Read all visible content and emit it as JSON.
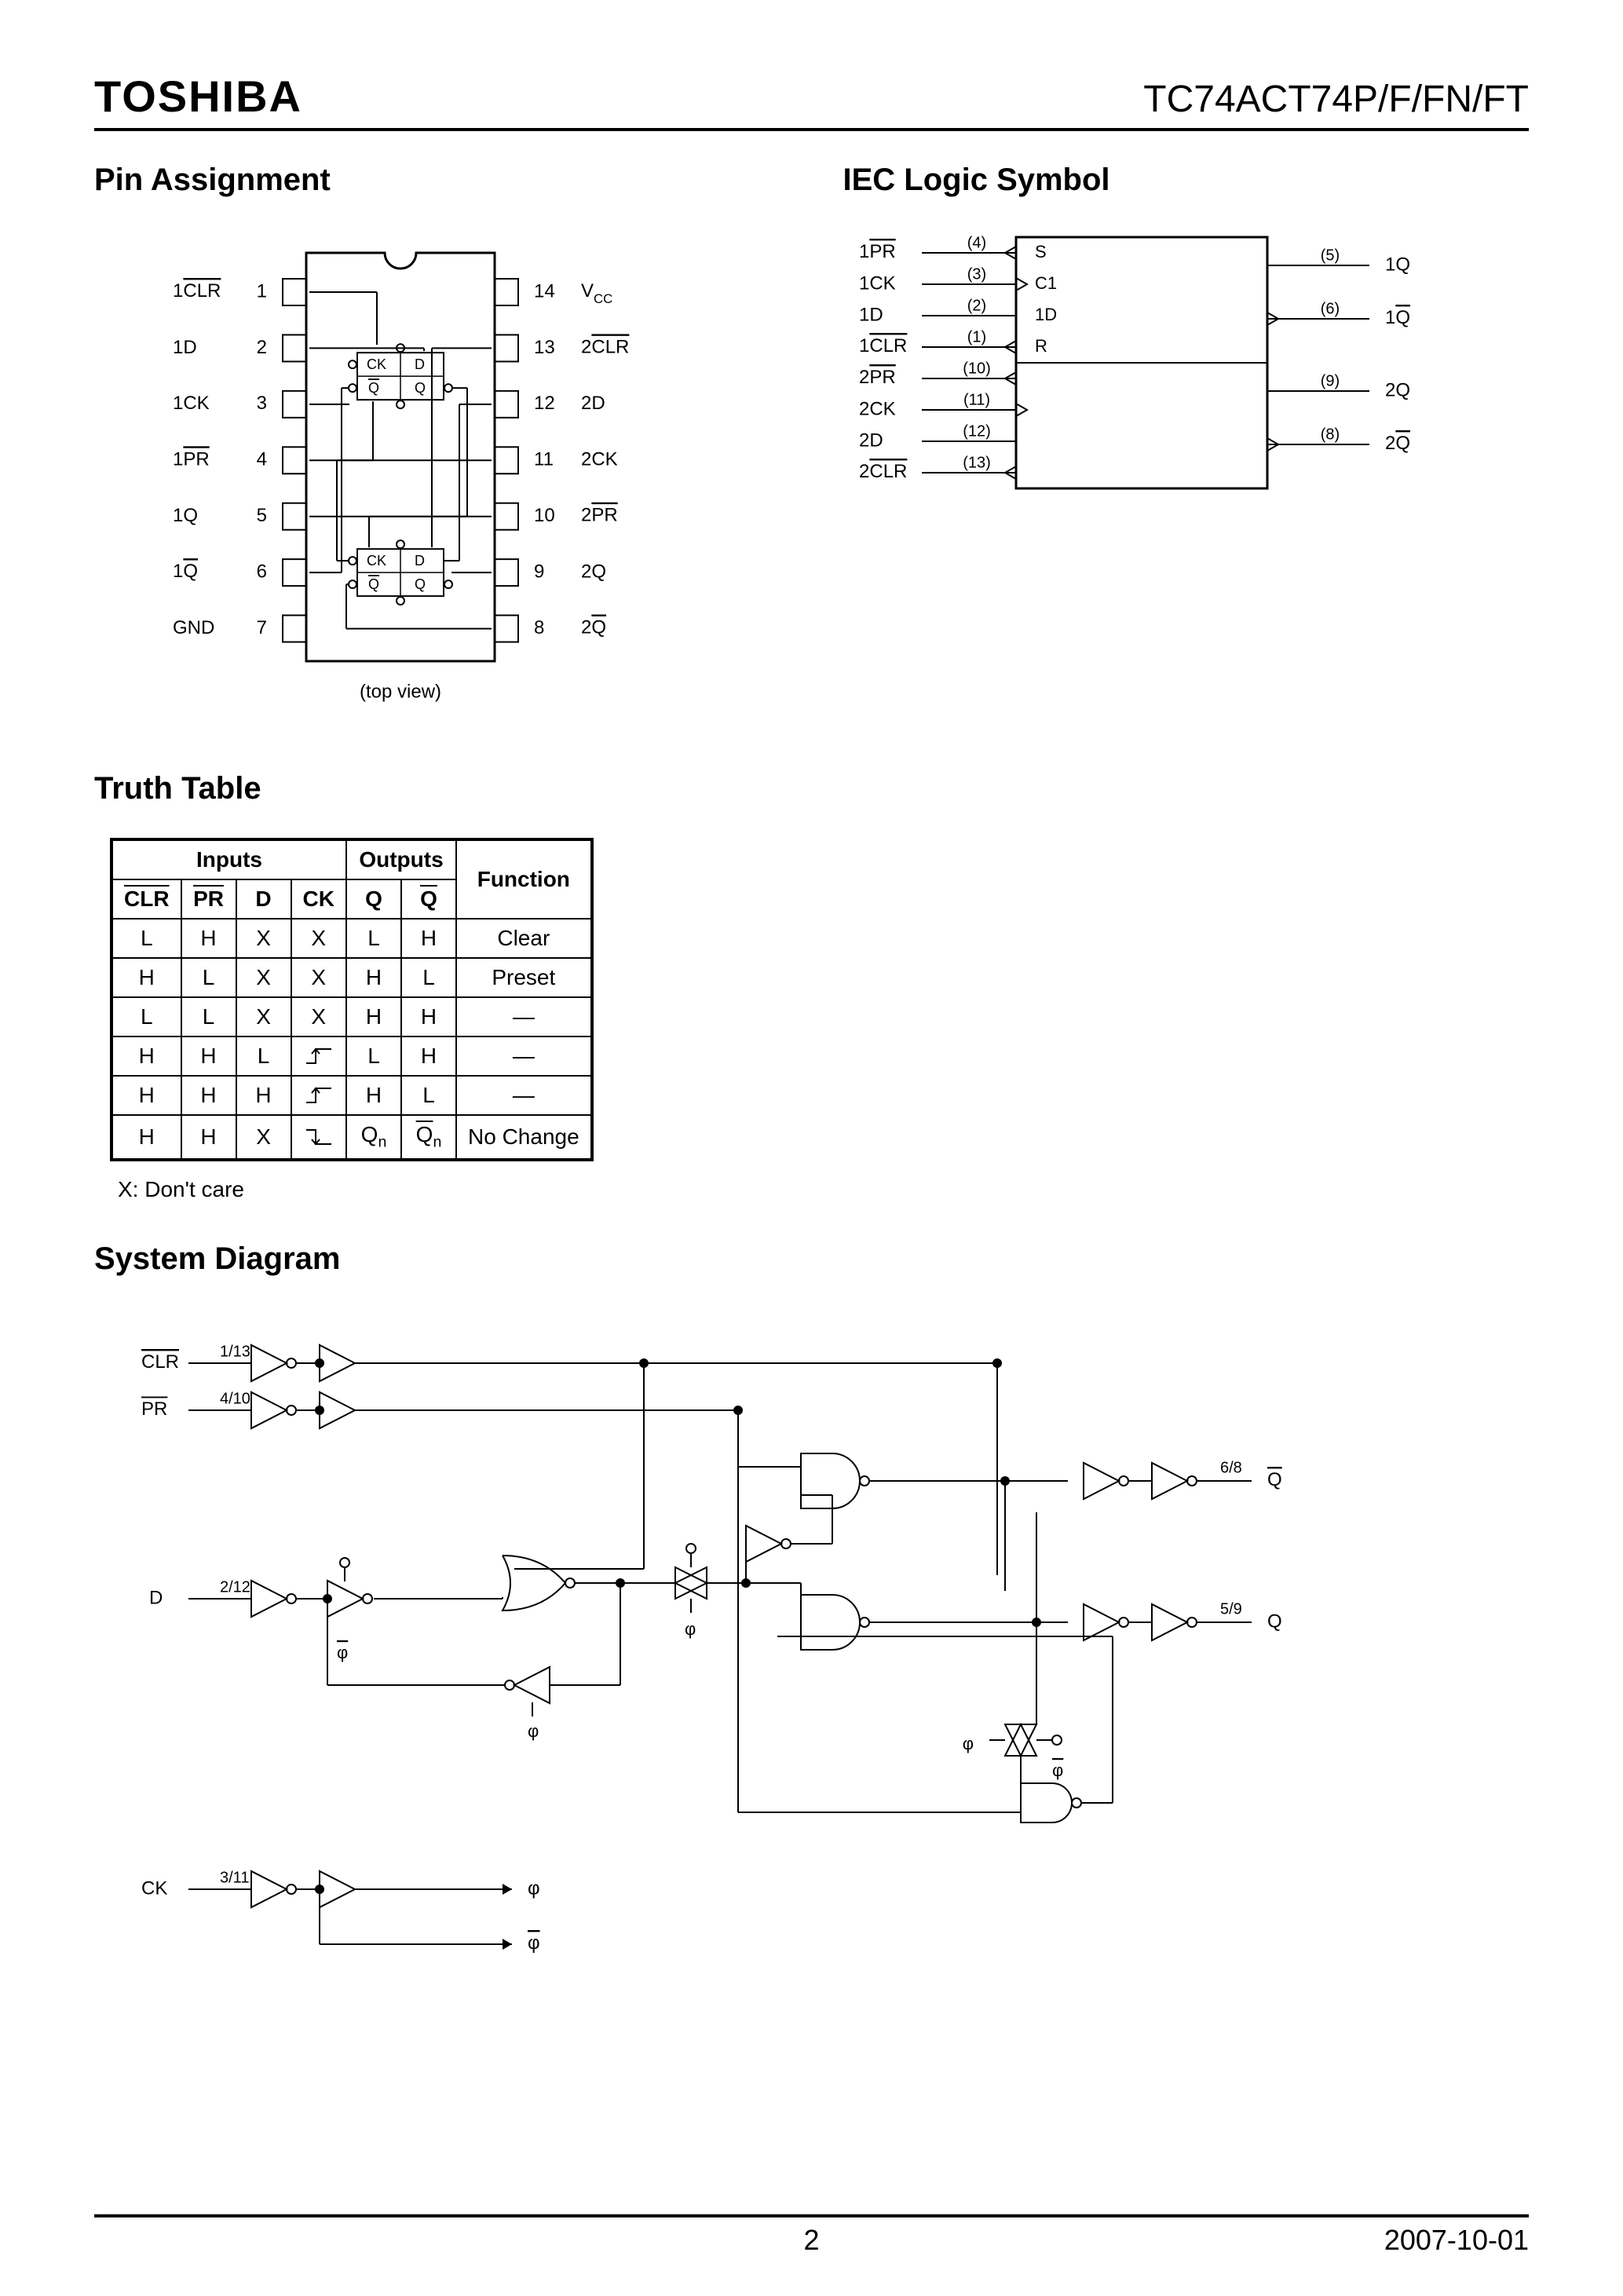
{
  "header": {
    "brand": "TOSHIBA",
    "part": "TC74ACT74P/F/FN/FT"
  },
  "sections": {
    "pin_assignment": "Pin Assignment",
    "iec_logic": "IEC Logic Symbol",
    "truth_table": "Truth Table",
    "system_diagram": "System Diagram",
    "top_view": "(top view)"
  },
  "pin_assignment": {
    "left": [
      {
        "num": "1",
        "label": "1CLR",
        "ov": true
      },
      {
        "num": "2",
        "label": "1D",
        "ov": false
      },
      {
        "num": "3",
        "label": "1CK",
        "ov": false
      },
      {
        "num": "4",
        "label": "1PR",
        "ov": true
      },
      {
        "num": "5",
        "label": "1Q",
        "ov": false
      },
      {
        "num": "6",
        "label": "1Q",
        "ov": true
      },
      {
        "num": "7",
        "label": "GND",
        "ov": false
      }
    ],
    "right": [
      {
        "num": "14",
        "label": "VCC",
        "ov": false,
        "sub": "CC"
      },
      {
        "num": "13",
        "label": "2CLR",
        "ov": true
      },
      {
        "num": "12",
        "label": "2D",
        "ov": false
      },
      {
        "num": "11",
        "label": "2CK",
        "ov": false
      },
      {
        "num": "10",
        "label": "2PR",
        "ov": true
      },
      {
        "num": "9",
        "label": "2Q",
        "ov": false
      },
      {
        "num": "8",
        "label": "2Q",
        "ov": true
      }
    ],
    "internal": {
      "ck": "CK",
      "d": "D",
      "qb": "Q",
      "q": "Q"
    }
  },
  "iec": {
    "left_inputs": [
      {
        "label": "1PR",
        "ov": true,
        "pin": "(4)",
        "neg": true,
        "sym": "S"
      },
      {
        "label": "1CK",
        "ov": false,
        "pin": "(3)",
        "clk": true,
        "sym": "C1"
      },
      {
        "label": "1D",
        "ov": false,
        "pin": "(2)",
        "sym": "1D"
      },
      {
        "label": "1CLR",
        "ov": true,
        "pin": "(1)",
        "neg": true,
        "sym": "R"
      },
      {
        "label": "2PR",
        "ov": true,
        "pin": "(10)",
        "neg": true
      },
      {
        "label": "2CK",
        "ov": false,
        "pin": "(11)",
        "clk": true
      },
      {
        "label": "2D",
        "ov": false,
        "pin": "(12)"
      },
      {
        "label": "2CLR",
        "ov": true,
        "pin": "(13)",
        "neg": true
      }
    ],
    "right_outputs": [
      {
        "label": "1Q",
        "ov": false,
        "pin": "(5)"
      },
      {
        "label": "1Q",
        "ov": true,
        "pin": "(6)",
        "neg": true
      },
      {
        "label": "2Q",
        "ov": false,
        "pin": "(9)"
      },
      {
        "label": "2Q",
        "ov": true,
        "pin": "(8)",
        "neg": true
      }
    ]
  },
  "truth_table": {
    "header1": {
      "inputs": "Inputs",
      "outputs": "Outputs",
      "function": "Function"
    },
    "header2": [
      "CLR",
      "PR",
      "D",
      "CK",
      "Q",
      "Q"
    ],
    "header2_ov": [
      true,
      true,
      false,
      false,
      false,
      true
    ],
    "rows": [
      {
        "c": [
          "L",
          "H",
          "X",
          "X",
          "L",
          "H"
        ],
        "fn": "Clear",
        "ck_type": "text"
      },
      {
        "c": [
          "H",
          "L",
          "X",
          "X",
          "H",
          "L"
        ],
        "fn": "Preset",
        "ck_type": "text"
      },
      {
        "c": [
          "L",
          "L",
          "X",
          "X",
          "H",
          "H"
        ],
        "fn": "—",
        "ck_type": "text"
      },
      {
        "c": [
          "H",
          "H",
          "L",
          "",
          "L",
          "H"
        ],
        "fn": "—",
        "ck_type": "rise"
      },
      {
        "c": [
          "H",
          "H",
          "H",
          "",
          "H",
          "L"
        ],
        "fn": "—",
        "ck_type": "rise"
      },
      {
        "c": [
          "H",
          "H",
          "X",
          "",
          "Qn",
          "Qn"
        ],
        "fn": "No Change",
        "ck_type": "fall",
        "q_ov": [
          false,
          true
        ]
      }
    ],
    "note": "X: Don't care"
  },
  "system_diagram": {
    "clr": {
      "label": "CLR",
      "ov": true,
      "pins": "1/13"
    },
    "pr": {
      "label": "PR",
      "ov": true,
      "pins": "4/10"
    },
    "d": {
      "label": "D",
      "pins": "2/12"
    },
    "ck": {
      "label": "CK",
      "pins": "3/11"
    },
    "qb": {
      "label": "Q",
      "ov": true,
      "pins": "6/8"
    },
    "q": {
      "label": "Q",
      "pins": "5/9"
    },
    "phi": "φ",
    "phib": "φ"
  },
  "footer": {
    "page": "2",
    "date": "2007-10-01"
  },
  "style": {
    "stroke": "#000",
    "stroke_width": 2,
    "font_size_diagram": 24,
    "font_size_small": 22
  }
}
